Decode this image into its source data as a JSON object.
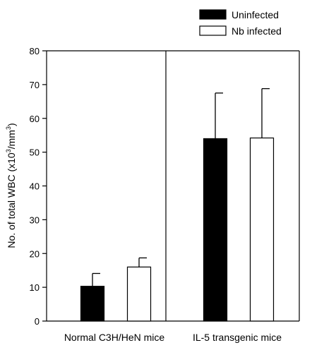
{
  "chart_data": {
    "type": "bar",
    "categories": [
      "Normal C3H/HeN mice",
      "IL-5 transgenic mice"
    ],
    "series": [
      {
        "name": "Uninfected",
        "color": "#000000",
        "values": [
          10.3,
          54.0
        ],
        "errors": [
          3.8,
          13.5
        ]
      },
      {
        "name": "Nb infected",
        "color": "#ffffff",
        "values": [
          16.0,
          54.2
        ],
        "errors": [
          2.7,
          14.6
        ]
      }
    ],
    "ylabel_parts": [
      "No. of total WBC (x10",
      "3",
      "/mm",
      "3",
      ")"
    ],
    "ylim": [
      0,
      80
    ],
    "yticks": [
      0,
      10,
      20,
      30,
      40,
      50,
      60,
      70,
      80
    ],
    "legend_position": "top-right",
    "error_bars": "upper",
    "grid": false
  }
}
